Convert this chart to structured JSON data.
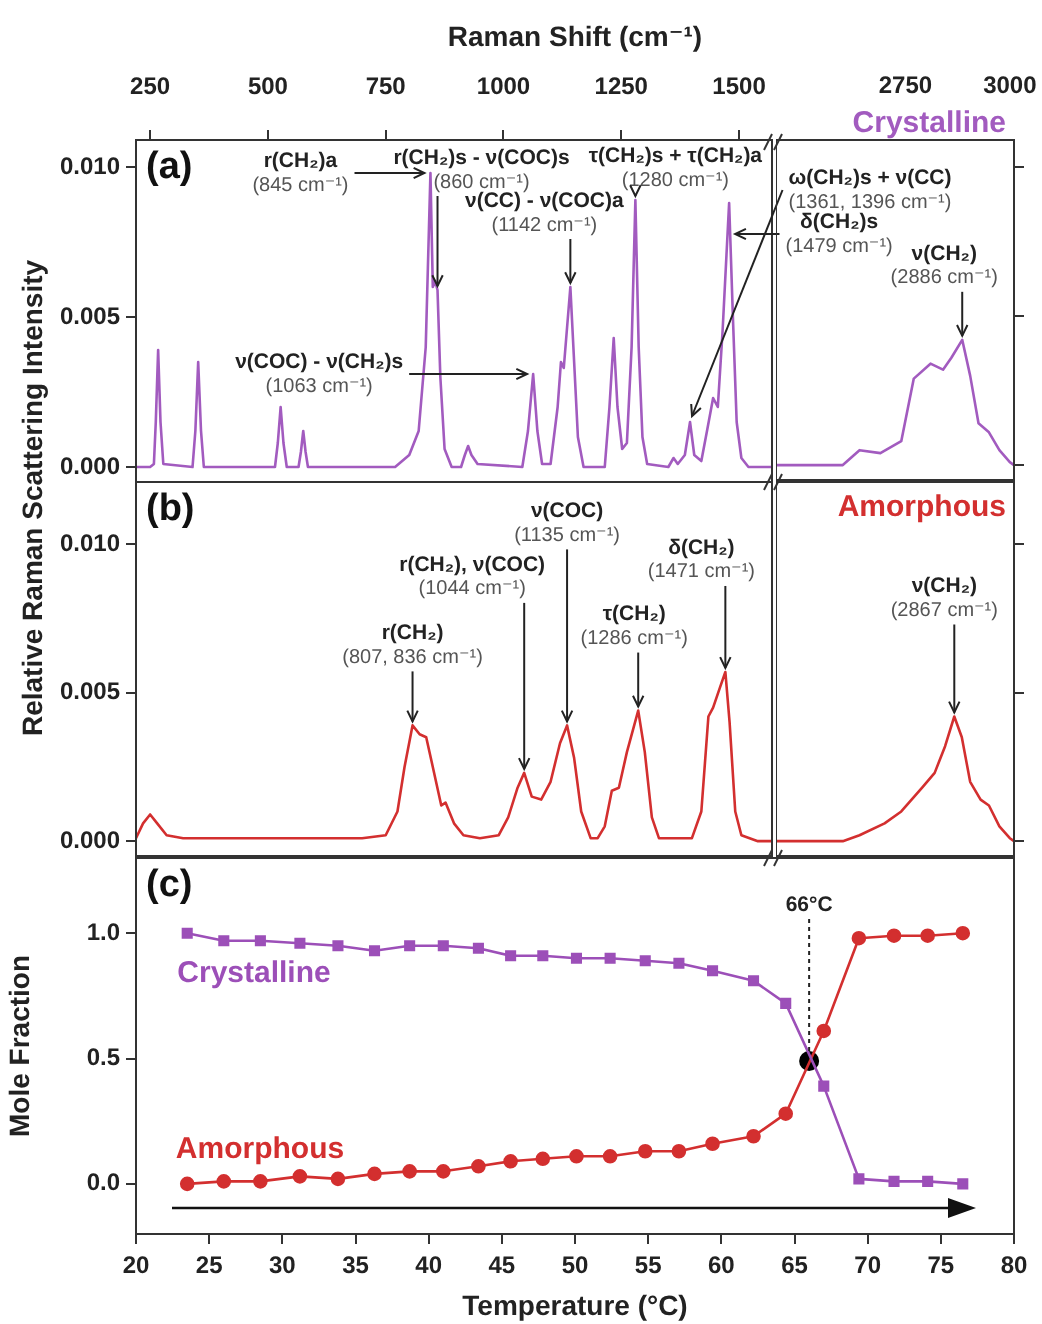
{
  "chart_data": [
    {
      "type": "line",
      "xlabel": "Raman Shift (cm⁻¹)",
      "ylabel": "Relative Raman Scattering Intensity",
      "annotations": [
        "(a)",
        {
          "text": "r(CH₂)a\n(845 cm⁻¹)",
          "x": 845,
          "y": 0.0098
        },
        {
          "text": "r(CH₂)s - ν(COC)s\n(860 cm⁻¹)",
          "x": 860,
          "y": 0.0059
        },
        {
          "text": "ν(COC) - ν(CH₂)s\n(1063 cm⁻¹)",
          "x": 1063,
          "y": 0.0031
        },
        {
          "text": "ν(CC) - ν(COC)a\n(1142 cm⁻¹)",
          "x": 1142,
          "y": 0.006
        },
        {
          "text": "τ(CH₂)s + τ(CH₂)a\n(1280 cm⁻¹)",
          "x": 1280,
          "y": 0.0089
        },
        {
          "text": "ω(CH₂)s + ν(CC)\n(1361, 1396 cm⁻¹)",
          "x": 1396,
          "y": 0.0015
        },
        {
          "text": "δ(CH₂)s\n(1479 cm⁻¹)",
          "x": 1479,
          "y": 0.0075
        }
      ],
      "x": [
        220,
        250,
        258,
        262,
        267,
        272,
        278,
        340,
        346,
        352,
        358,
        364,
        515,
        521,
        527,
        533,
        540,
        565,
        570,
        575,
        580,
        585,
        770,
        800,
        820,
        835,
        845,
        850,
        855,
        860,
        866,
        875,
        890,
        910,
        918,
        925,
        932,
        945,
        1040,
        1052,
        1063,
        1072,
        1082,
        1100,
        1115,
        1122,
        1128,
        1142,
        1150,
        1158,
        1170,
        1215,
        1225,
        1234,
        1242,
        1252,
        1262,
        1272,
        1280,
        1287,
        1295,
        1305,
        1350,
        1361,
        1370,
        1385,
        1396,
        1405,
        1420,
        1432,
        1445,
        1455,
        1465,
        1479,
        1487,
        1495,
        1505,
        1520,
        1570
      ],
      "series": [
        {
          "color": "#a25bbf",
          "values": [
            0,
            0,
            0.0001,
            0.0015,
            0.0039,
            0.0015,
            0.0001,
            0,
            0.0012,
            0.0035,
            0.0012,
            0,
            0,
            0.0008,
            0.002,
            0.0008,
            0,
            0,
            0.0005,
            0.0012,
            0.0005,
            0,
            0,
            0.0004,
            0.0012,
            0.004,
            0.0098,
            0.006,
            0.0062,
            0.0059,
            0.003,
            0.0006,
            0,
            0,
            0.0004,
            0.0007,
            0.0004,
            0.0001,
            0,
            0.0012,
            0.0031,
            0.0012,
            0.0001,
            0.0001,
            0.002,
            0.0035,
            0.0033,
            0.006,
            0.0035,
            0.001,
            0,
            0,
            0.002,
            0.0043,
            0.002,
            0.0006,
            0.0008,
            0.004,
            0.0089,
            0.004,
            0.001,
            0.0001,
            0,
            0.0003,
            0.0001,
            0.0004,
            0.0015,
            0.0004,
            0.0002,
            0.0012,
            0.0023,
            0.002,
            0.0045,
            0.0088,
            0.005,
            0.0015,
            0.0003,
            0,
            0
          ]
        }
      ],
      "xlim": [
        220,
        1570
      ],
      "xticks": [
        250,
        500,
        750,
        1000,
        1250,
        1500
      ],
      "ylim": [
        -0.0005,
        0.0109
      ],
      "yticks": [
        {
          "value": 0,
          "label": "0.000"
        },
        {
          "value": 0.005,
          "label": "0.005"
        },
        {
          "value": 0.01,
          "label": "0.010"
        }
      ]
    },
    {
      "type": "line",
      "annotations": [
        {
          "text": "ν(CH₂)\n(2886 cm⁻¹)",
          "x": 2886,
          "y": 0.0042
        }
      ],
      "x": [
        2440,
        2600,
        2640,
        2690,
        2740,
        2770,
        2810,
        2840,
        2860,
        2886,
        2905,
        2925,
        2950,
        2975,
        3000,
        3010
      ],
      "series": [
        {
          "name": "Crystalline",
          "color": "#a25bbf",
          "values": [
            0,
            0,
            0.0005,
            0.0004,
            0.0008,
            0.0029,
            0.0034,
            0.0032,
            0.0036,
            0.0042,
            0.003,
            0.0014,
            0.0011,
            0.0005,
            0.0001,
            0
          ]
        }
      ],
      "xlim": [
        2440,
        3010
      ],
      "xticks": [
        2750,
        3000
      ],
      "ylim": [
        -0.0005,
        0.0109
      ],
      "yticks": [
        {
          "value": 0,
          "label": null
        },
        {
          "value": 0.005,
          "label": null
        },
        {
          "value": 0.01,
          "label": null
        }
      ],
      "tick_labels": "x"
    },
    {
      "type": "line",
      "annotations": [
        "(b)",
        {
          "text": "r(CH₂)\n(807, 836 cm⁻¹)",
          "x": 807,
          "y": 0.0039
        },
        {
          "text": "r(CH₂), ν(COC)\n(1044 cm⁻¹)",
          "x": 1044,
          "y": 0.0023
        },
        {
          "text": "ν(COC)\n(1135 cm⁻¹)",
          "x": 1135,
          "y": 0.0039
        },
        {
          "text": "τ(CH₂)\n(1286 cm⁻¹)",
          "x": 1286,
          "y": 0.0044
        },
        {
          "text": "δ(CH₂)\n(1471 cm⁻¹)",
          "x": 1471,
          "y": 0.0057
        }
      ],
      "x": [
        220,
        235,
        250,
        265,
        285,
        320,
        400,
        500,
        600,
        700,
        750,
        775,
        790,
        807,
        822,
        836,
        850,
        868,
        877,
        895,
        915,
        950,
        990,
        1010,
        1030,
        1044,
        1060,
        1080,
        1100,
        1120,
        1135,
        1150,
        1165,
        1185,
        1200,
        1215,
        1230,
        1245,
        1262,
        1286,
        1300,
        1315,
        1330,
        1400,
        1420,
        1435,
        1445,
        1460,
        1471,
        1480,
        1492,
        1505,
        1540,
        1570
      ],
      "series": [
        {
          "color": "#d32f2f",
          "values": [
            0.0001,
            0.0006,
            0.0009,
            0.0006,
            0.0002,
            0.0001,
            0.0001,
            0.0001,
            0.0001,
            0.0001,
            0.0002,
            0.001,
            0.0025,
            0.0039,
            0.0036,
            0.0035,
            0.0025,
            0.0012,
            0.0013,
            0.0006,
            0.0002,
            0.0001,
            0.0002,
            0.0008,
            0.0018,
            0.0023,
            0.0015,
            0.0014,
            0.002,
            0.0033,
            0.0039,
            0.0028,
            0.001,
            0.0001,
            0.0001,
            0.0005,
            0.0017,
            0.0018,
            0.003,
            0.0044,
            0.003,
            0.0008,
            0.0001,
            0.0001,
            0.001,
            0.0042,
            0.0045,
            0.0052,
            0.0057,
            0.004,
            0.001,
            0.0002,
            0,
            0
          ]
        }
      ],
      "xlim": [
        220,
        1570
      ],
      "xticks": [
        250,
        500,
        750,
        1000,
        1250,
        1500
      ],
      "ylim": [
        -0.0005,
        0.0121
      ],
      "yticks": [
        {
          "value": 0,
          "label": "0.000"
        },
        {
          "value": 0.005,
          "label": "0.005"
        },
        {
          "value": 0.01,
          "label": "0.010"
        }
      ],
      "tick_labels": "y"
    },
    {
      "type": "line",
      "annotations": [
        {
          "text": "ν(CH₂)\n(2867 cm⁻¹)",
          "x": 2867,
          "y": 0.0042
        }
      ],
      "x": [
        2440,
        2600,
        2640,
        2700,
        2740,
        2790,
        2820,
        2845,
        2867,
        2885,
        2905,
        2930,
        2950,
        2975,
        3000,
        3010
      ],
      "series": [
        {
          "name": "Amorphous",
          "color": "#d32f2f",
          "values": [
            0,
            0,
            0.0002,
            0.0006,
            0.001,
            0.0018,
            0.0023,
            0.0032,
            0.0042,
            0.0035,
            0.002,
            0.0014,
            0.0012,
            0.0005,
            0.0001,
            0
          ]
        }
      ],
      "xlim": [
        2440,
        3010
      ],
      "xticks": [
        2750,
        3000
      ],
      "ylim": [
        -0.0005,
        0.0121
      ],
      "yticks": [
        {
          "value": 0,
          "label": null
        },
        {
          "value": 0.005,
          "label": null
        },
        {
          "value": 0.01,
          "label": null
        }
      ],
      "tick_labels": false
    },
    {
      "type": "line",
      "xlabel": "Temperature (°C)",
      "ylabel": "Mole Fraction",
      "annotations": [
        "(c)",
        {
          "text": "66°C",
          "x": 66,
          "y": 0.49
        }
      ],
      "x": [
        23.5,
        26,
        28.5,
        31.2,
        33.8,
        36.3,
        38.7,
        41,
        43.4,
        45.6,
        47.8,
        50.1,
        52.4,
        54.8,
        57.1,
        59.4,
        62.2,
        64.4,
        67,
        69.4,
        71.8,
        74.1,
        76.5
      ],
      "series": [
        {
          "name": "Crystalline",
          "color": "#9c4fb8",
          "marker": "square",
          "values": [
            1,
            0.97,
            0.97,
            0.96,
            0.95,
            0.93,
            0.95,
            0.95,
            0.94,
            0.91,
            0.91,
            0.9,
            0.9,
            0.89,
            0.88,
            0.85,
            0.81,
            0.72,
            0.39,
            0.02,
            0.01,
            0.01,
            0
          ]
        },
        {
          "name": "Amorphous",
          "color": "#d32f2f",
          "marker": "circle",
          "values": [
            0,
            0.01,
            0.01,
            0.03,
            0.02,
            0.04,
            0.05,
            0.05,
            0.07,
            0.09,
            0.1,
            0.11,
            0.11,
            0.13,
            0.13,
            0.16,
            0.19,
            0.28,
            0.61,
            0.98,
            0.99,
            0.99,
            1
          ]
        },
        {
          "type": "scatter",
          "color": "#000000",
          "marker": "circle",
          "x": [
            66
          ],
          "values": [
            0.49
          ]
        }
      ],
      "xlim": [
        20,
        80
      ],
      "xticks": [
        20,
        25,
        30,
        35,
        40,
        45,
        50,
        55,
        60,
        65,
        70,
        75,
        80
      ],
      "ylim": [
        -0.2,
        1.3
      ],
      "yticks": [
        {
          "value": 0,
          "label": "0.0"
        },
        {
          "value": 0.5,
          "label": "0.5"
        },
        {
          "value": 1,
          "label": "1.0"
        }
      ],
      "line_style": "solid"
    }
  ]
}
